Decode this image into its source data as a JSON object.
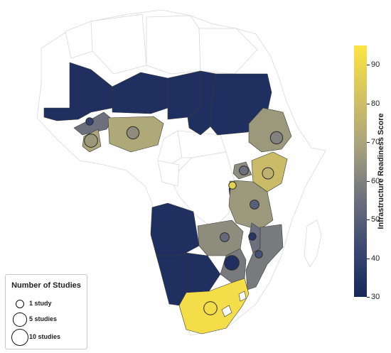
{
  "colorbar": {
    "label": "Infrastructure Readiness Score",
    "min": 30,
    "max": 95,
    "ticks": [
      "30",
      "40",
      "50",
      "60",
      "70",
      "80",
      "90"
    ],
    "colors": [
      "#16285a",
      "#3c4a73",
      "#70737e",
      "#a8a37c",
      "#d4c262",
      "#fce540"
    ]
  },
  "legend": {
    "title": "Number of Studies",
    "items": [
      {
        "label": "1 study",
        "studies": 1
      },
      {
        "label": "5 studies",
        "studies": 5
      },
      {
        "label": "10 studies",
        "studies": 10
      }
    ]
  },
  "countries": [
    {
      "id": "mauritania",
      "score": 33
    },
    {
      "id": "mali",
      "score": 33
    },
    {
      "id": "niger",
      "score": 33
    },
    {
      "id": "chad",
      "score": 33
    },
    {
      "id": "sudan",
      "score": 33
    },
    {
      "id": "burkina-faso",
      "score": 55
    },
    {
      "id": "ghana",
      "score": 70
    },
    {
      "id": "nigeria",
      "score": 71
    },
    {
      "id": "ethiopia",
      "score": 66
    },
    {
      "id": "uganda",
      "score": 63
    },
    {
      "id": "kenya",
      "score": 79
    },
    {
      "id": "rwanda",
      "score": 75
    },
    {
      "id": "burundi",
      "score": 36
    },
    {
      "id": "tanzania",
      "score": 66
    },
    {
      "id": "angola",
      "score": 33
    },
    {
      "id": "zambia",
      "score": 63
    },
    {
      "id": "malawi",
      "score": 55
    },
    {
      "id": "mozambique",
      "score": 58
    },
    {
      "id": "zimbabwe",
      "score": 58
    },
    {
      "id": "namibia",
      "score": 33
    },
    {
      "id": "botswana",
      "score": 33
    },
    {
      "id": "south-africa",
      "score": 92
    }
  ],
  "bubbles": [
    {
      "country": "burkina-faso",
      "studies": 1,
      "score": 40
    },
    {
      "country": "ghana",
      "studies": 6,
      "score": 66
    },
    {
      "country": "nigeria",
      "studies": 5,
      "score": 63
    },
    {
      "country": "ethiopia",
      "studies": 5,
      "score": 60
    },
    {
      "country": "uganda",
      "studies": 2,
      "score": 55
    },
    {
      "country": "kenya",
      "studies": 4,
      "score": 75
    },
    {
      "country": "rwanda",
      "studies": 1,
      "score": 88
    },
    {
      "country": "tanzania",
      "studies": 2,
      "score": 50
    },
    {
      "country": "zambia",
      "studies": 2,
      "score": 53
    },
    {
      "country": "malawi",
      "studies": 1,
      "score": 35
    },
    {
      "country": "mozambique",
      "studies": 1,
      "score": 45
    },
    {
      "country": "zimbabwe",
      "studies": 8,
      "score": 33
    },
    {
      "country": "south-africa",
      "studies": 6,
      "score": 92
    }
  ]
}
